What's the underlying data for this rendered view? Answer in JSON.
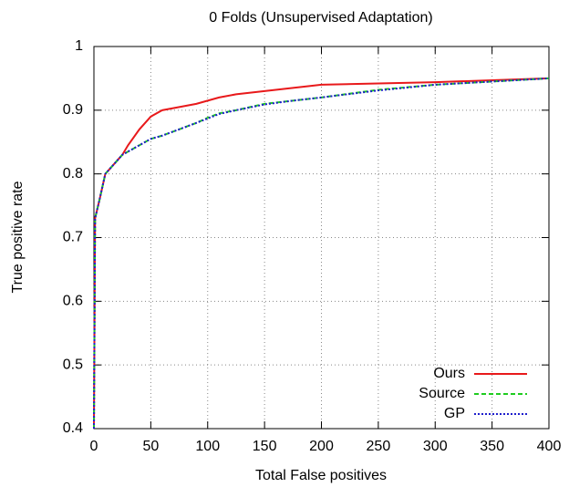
{
  "chart_data": {
    "type": "line",
    "title": "0 Folds (Unsupervised Adaptation)",
    "x_label": "Total False positives",
    "y_label": "True positive rate",
    "x": [
      0,
      1,
      5,
      10,
      15,
      20,
      25,
      30,
      40,
      50,
      60,
      75,
      90,
      100,
      110,
      125,
      150,
      175,
      200,
      250,
      300,
      350,
      400
    ],
    "series": [
      {
        "name": "Ours",
        "color": "#e8191b",
        "dash": "solid",
        "values": [
          0.4,
          0.73,
          0.76,
          0.8,
          0.81,
          0.82,
          0.83,
          0.845,
          0.87,
          0.89,
          0.9,
          0.905,
          0.91,
          0.915,
          0.92,
          0.925,
          0.93,
          0.935,
          0.94,
          0.942,
          0.944,
          0.947,
          0.95
        ]
      },
      {
        "name": "Source",
        "color": "#1fcc1f",
        "dash": "dashed",
        "values": [
          0.4,
          0.73,
          0.76,
          0.8,
          0.81,
          0.82,
          0.83,
          0.835,
          0.845,
          0.855,
          0.86,
          0.87,
          0.88,
          0.888,
          0.895,
          0.9,
          0.91,
          0.915,
          0.92,
          0.932,
          0.94,
          0.945,
          0.95
        ]
      },
      {
        "name": "GP",
        "color": "#1f1fcc",
        "dash": "dotted",
        "values": [
          0.4,
          0.73,
          0.76,
          0.8,
          0.81,
          0.82,
          0.83,
          0.835,
          0.845,
          0.855,
          0.86,
          0.87,
          0.88,
          0.887,
          0.894,
          0.9,
          0.909,
          0.915,
          0.92,
          0.931,
          0.94,
          0.945,
          0.95
        ]
      }
    ],
    "xlim": [
      0,
      400
    ],
    "xticks": [
      0,
      50,
      100,
      150,
      200,
      250,
      300,
      350,
      400
    ],
    "ylim": [
      0.4,
      1
    ],
    "yticks": [
      0.4,
      0.5,
      0.6,
      0.7,
      0.8,
      0.9,
      1
    ],
    "grid": true,
    "legend": "lower right"
  }
}
